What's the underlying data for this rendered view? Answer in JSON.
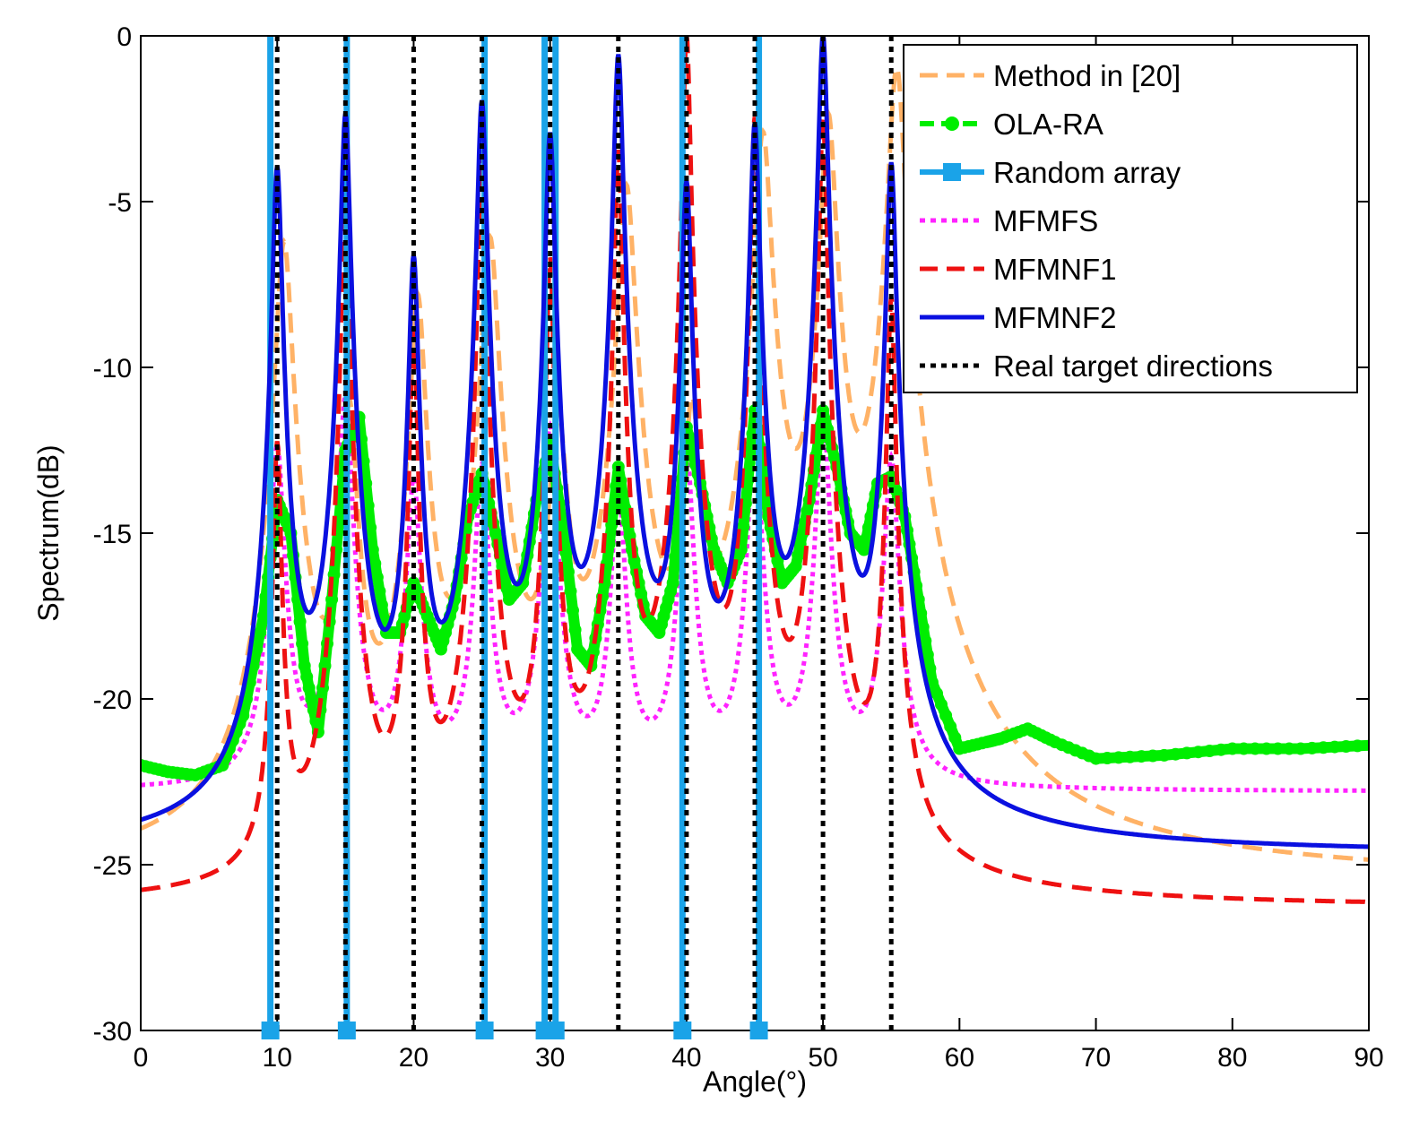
{
  "chart_data": {
    "type": "line",
    "title": "",
    "xlabel": "Angle(°)",
    "ylabel": "Spectrum(dB)",
    "xlim": [
      0,
      90
    ],
    "ylim": [
      -30,
      0
    ],
    "xticks": [
      0,
      10,
      20,
      30,
      40,
      50,
      60,
      70,
      80,
      90
    ],
    "yticks": [
      -30,
      -25,
      -20,
      -15,
      -10,
      -5,
      0
    ],
    "xtick_labels": [
      "0",
      "10",
      "20",
      "30",
      "40",
      "50",
      "60",
      "70",
      "80",
      "90"
    ],
    "ytick_labels": [
      "-30",
      "-25",
      "-20",
      "-15",
      "-10",
      "-5",
      "0"
    ],
    "grid": false,
    "legend_position": "top-right",
    "series": [
      {
        "name": "Method in [20]",
        "color": "#FFB266",
        "style": "dashed",
        "baseline": -25.5,
        "peaks": [
          {
            "x": 10.5,
            "y": -6.3,
            "w": 0.55
          },
          {
            "x": 15.3,
            "y": -11.5,
            "w": 0.5
          },
          {
            "x": 20.3,
            "y": -8.0,
            "w": 0.5
          },
          {
            "x": 25.6,
            "y": -6.2,
            "w": 0.55
          },
          {
            "x": 30.6,
            "y": -12.1,
            "w": 0.6
          },
          {
            "x": 35.6,
            "y": -4.6,
            "w": 0.55
          },
          {
            "x": 40.4,
            "y": -11.8,
            "w": 0.5
          },
          {
            "x": 45.6,
            "y": -3.0,
            "w": 0.55
          },
          {
            "x": 50.4,
            "y": -2.5,
            "w": 0.5
          },
          {
            "x": 55.4,
            "y": -1.0,
            "w": 0.55
          }
        ]
      },
      {
        "name": "OLA-RA",
        "color": "#00EE00",
        "style": "dashed-star",
        "x": [
          0,
          2,
          4,
          6,
          7.5,
          9,
          10,
          11,
          12,
          13,
          14,
          15,
          16,
          17,
          18,
          19,
          20,
          21,
          22,
          23,
          24,
          25,
          26,
          27,
          28,
          29,
          30,
          31,
          32,
          33,
          34,
          35,
          36,
          37,
          38,
          39,
          40,
          41,
          42,
          43,
          44,
          45,
          46,
          47,
          48,
          49,
          50,
          51,
          52,
          53,
          54,
          55,
          56,
          57,
          58,
          60,
          62,
          63,
          65,
          67,
          70,
          75,
          80,
          85,
          90
        ],
        "y": [
          -22.0,
          -22.2,
          -22.3,
          -22.0,
          -20.5,
          -17.5,
          -14.0,
          -15.0,
          -19.0,
          -21.0,
          -17.0,
          -12.5,
          -11.5,
          -15.5,
          -18.0,
          -18.0,
          -16.5,
          -17.5,
          -18.5,
          -17.0,
          -14.5,
          -13.2,
          -15.0,
          -17.0,
          -16.5,
          -14.0,
          -12.3,
          -15.0,
          -18.5,
          -19.0,
          -16.5,
          -13.0,
          -15.5,
          -17.5,
          -18.0,
          -16.5,
          -11.8,
          -13.5,
          -15.5,
          -16.5,
          -15.5,
          -11.3,
          -14.5,
          -16.5,
          -16.0,
          -14.0,
          -11.3,
          -13.0,
          -15.0,
          -15.5,
          -13.5,
          -13.3,
          -14.5,
          -17.0,
          -19.5,
          -21.5,
          -21.3,
          -21.2,
          -20.9,
          -21.3,
          -21.8,
          -21.7,
          -21.5,
          -21.5,
          -21.4
        ]
      },
      {
        "name": "Random array",
        "color": "#1AA3E8",
        "style": "solid-square",
        "positions": [
          9.5,
          15.1,
          25.2,
          29.6,
          30.4,
          39.7,
          45.3
        ]
      },
      {
        "name": "MFMFS",
        "color": "#FF22FF",
        "style": "dotted",
        "baseline": -22.8,
        "peaks": [
          {
            "x": 10.0,
            "y": -12.8,
            "w": 0.45
          },
          {
            "x": 15.0,
            "y": -11.2,
            "w": 0.45
          },
          {
            "x": 20.0,
            "y": -14.0,
            "w": 0.45
          },
          {
            "x": 25.0,
            "y": -13.5,
            "w": 0.45
          },
          {
            "x": 30.0,
            "y": -12.2,
            "w": 0.45
          },
          {
            "x": 35.0,
            "y": -14.2,
            "w": 0.45
          },
          {
            "x": 40.0,
            "y": -13.0,
            "w": 0.45
          },
          {
            "x": 45.0,
            "y": -12.4,
            "w": 0.45
          },
          {
            "x": 50.0,
            "y": -11.8,
            "w": 0.45
          },
          {
            "x": 55.0,
            "y": -13.2,
            "w": 0.45
          }
        ]
      },
      {
        "name": "MFMNF1",
        "color": "#EE1111",
        "style": "dashed",
        "baseline": -26.3,
        "peaks": [
          {
            "x": 10.0,
            "y": -12.5,
            "w": 0.25
          },
          {
            "x": 15.0,
            "y": -4.5,
            "w": 0.25
          },
          {
            "x": 20.0,
            "y": -9.0,
            "w": 0.25
          },
          {
            "x": 25.0,
            "y": -3.5,
            "w": 0.25
          },
          {
            "x": 30.0,
            "y": -6.8,
            "w": 0.25
          },
          {
            "x": 35.0,
            "y": -3.5,
            "w": 0.25
          },
          {
            "x": 40.0,
            "y": 0.0,
            "w": 0.25
          },
          {
            "x": 45.0,
            "y": -2.5,
            "w": 0.25
          },
          {
            "x": 50.0,
            "y": -2.5,
            "w": 0.25
          },
          {
            "x": 55.0,
            "y": -8.0,
            "w": 0.25
          }
        ]
      },
      {
        "name": "MFMNF2",
        "color": "#0A10E0",
        "style": "solid",
        "baseline": -24.7,
        "peaks": [
          {
            "x": 10.0,
            "y": -4.0,
            "w": 0.3
          },
          {
            "x": 15.0,
            "y": -2.4,
            "w": 0.3
          },
          {
            "x": 20.0,
            "y": -6.8,
            "w": 0.3
          },
          {
            "x": 25.0,
            "y": -2.0,
            "w": 0.3
          },
          {
            "x": 30.0,
            "y": -3.0,
            "w": 0.3
          },
          {
            "x": 35.0,
            "y": -0.6,
            "w": 0.3
          },
          {
            "x": 40.0,
            "y": -4.5,
            "w": 0.3
          },
          {
            "x": 45.0,
            "y": -2.7,
            "w": 0.3
          },
          {
            "x": 50.0,
            "y": 0.0,
            "w": 0.3
          },
          {
            "x": 55.0,
            "y": -3.9,
            "w": 0.3
          }
        ]
      },
      {
        "name": "Real target directions",
        "color": "#000000",
        "style": "dotted",
        "positions": [
          10,
          15,
          20,
          25,
          30,
          35,
          40,
          45,
          50,
          55
        ]
      }
    ]
  }
}
